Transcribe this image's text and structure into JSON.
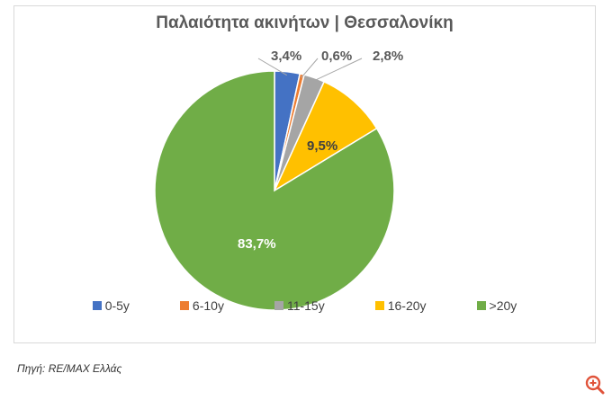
{
  "chart_data": {
    "type": "pie",
    "title": "Παλαιότητα ακινήτων | Θεσσαλονίκη",
    "categories": [
      "0-5y",
      "6-10y",
      "11-15y",
      "16-20y",
      ">20y"
    ],
    "values": [
      3.4,
      0.6,
      2.8,
      9.5,
      83.7
    ],
    "data_labels": [
      "3,4%",
      "0,6%",
      "2,8%",
      "9,5%",
      "83,7%"
    ],
    "colors": [
      "#4472c4",
      "#ed7d31",
      "#a5a5a5",
      "#ffc000",
      "#70ad47"
    ],
    "legend_position": "bottom"
  },
  "source_text": "Πηγή: RE/MAX Ελλάς",
  "zoom_icon": "zoom-in-icon",
  "zoom_color": "#e0533a"
}
